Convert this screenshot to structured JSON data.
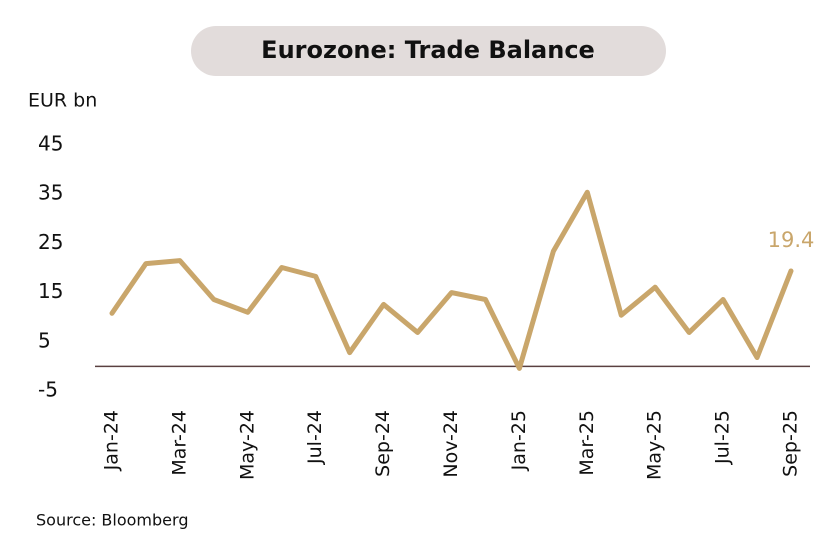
{
  "chart_data": {
    "type": "line",
    "title": "Eurozone: Trade Balance",
    "y_label": "EUR bn",
    "source": "Source: Bloomberg",
    "categories": [
      "Jan-24",
      null,
      "Mar-24",
      null,
      "May-24",
      null,
      "Jul-24",
      null,
      "Sep-24",
      null,
      "Nov-24",
      null,
      "Jan-25",
      null,
      "Mar-25",
      null,
      "May-25",
      null,
      "Jul-25",
      null,
      "Sep-25"
    ],
    "series": [
      {
        "color": "#c9a66b",
        "values": [
          10.8,
          20.9,
          21.5,
          13.6,
          11.0,
          20.1,
          18.3,
          2.8,
          12.6,
          6.9,
          15.0,
          13.6,
          -0.4,
          23.4,
          35.4,
          10.4,
          16.1,
          6.9,
          13.6,
          1.8,
          19.4
        ]
      }
    ],
    "ylim": [
      -5,
      45
    ],
    "yticks": [
      -5,
      5,
      15,
      25,
      35,
      45
    ],
    "grid": false
  }
}
